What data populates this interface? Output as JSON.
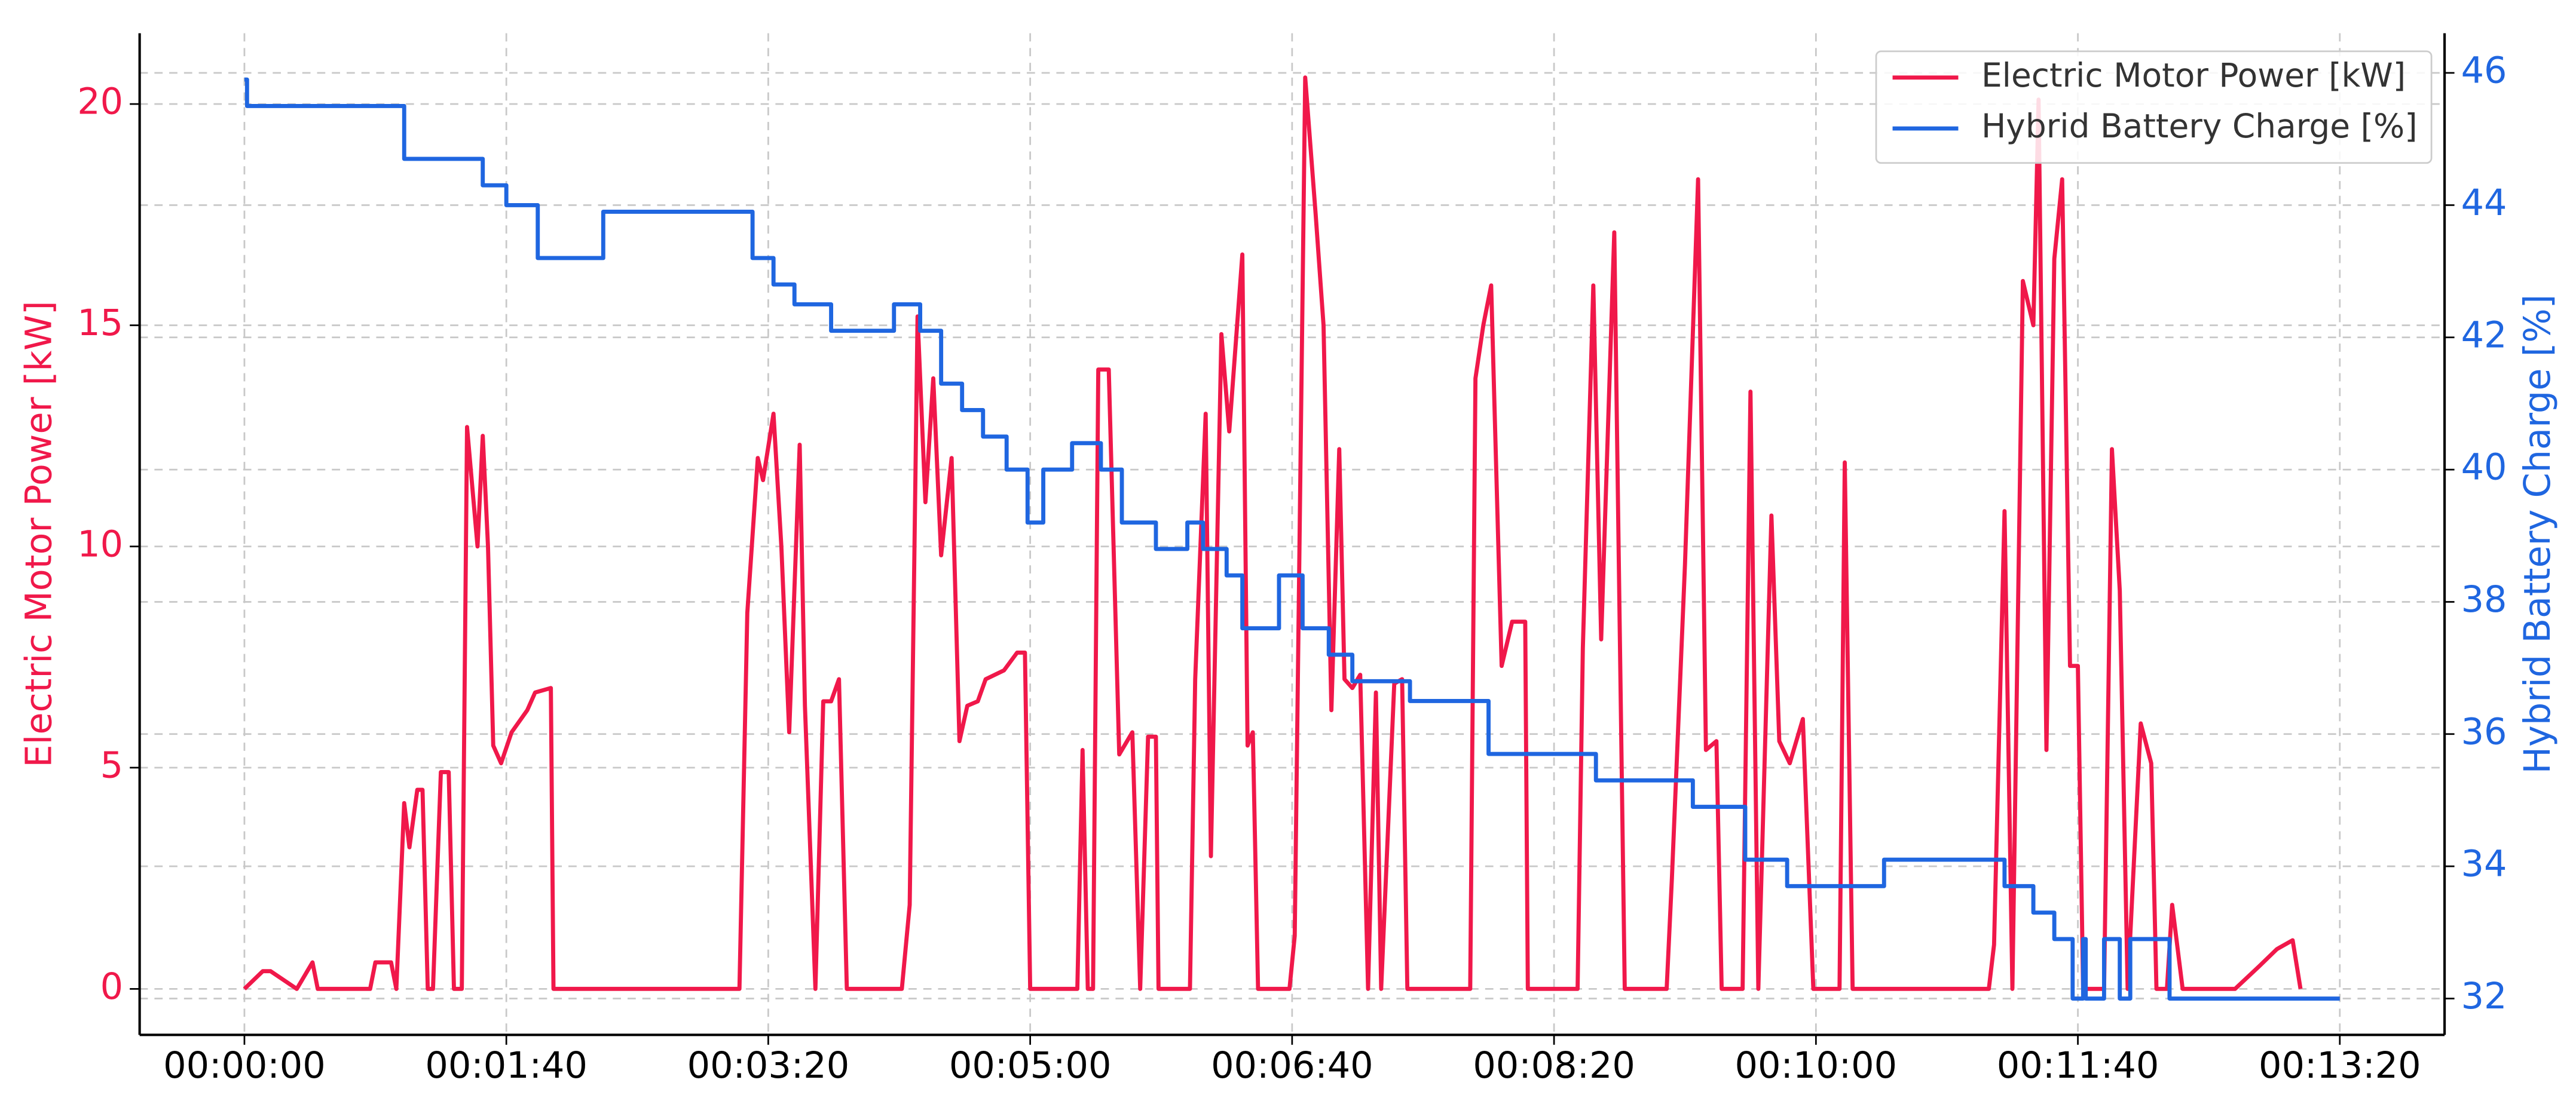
{
  "chart_data": {
    "type": "line",
    "y_label": "Electric Motor Power [kW]",
    "y2_label": "Hybrid Battery Charge [%]",
    "xlim": [
      -40,
      840
    ],
    "xticks": [
      {
        "value": 0,
        "label": "00:00:00"
      },
      {
        "value": 100,
        "label": "00:01:40"
      },
      {
        "value": 200,
        "label": "00:03:20"
      },
      {
        "value": 300,
        "label": "00:05:00"
      },
      {
        "value": 400,
        "label": "00:06:40"
      },
      {
        "value": 500,
        "label": "00:08:20"
      },
      {
        "value": 600,
        "label": "00:10:00"
      },
      {
        "value": 700,
        "label": "00:11:40"
      },
      {
        "value": 800,
        "label": "00:13:20"
      }
    ],
    "ylim": [
      -1.04,
      21.6
    ],
    "yticks": [
      0,
      5,
      10,
      15,
      20
    ],
    "y2lim": [
      31.45,
      46.6
    ],
    "y2ticks": [
      32,
      34,
      36,
      38,
      40,
      42,
      44,
      46
    ],
    "grid": true,
    "legend": "upper right",
    "series": [
      {
        "name": "Electric Motor Power [kW]",
        "color": "#f0184a",
        "axis": "y",
        "x": [
          0,
          7,
          10,
          20,
          26,
          28,
          48,
          50,
          56,
          58,
          61,
          63,
          66,
          68,
          70,
          72,
          75,
          78,
          80,
          83,
          85,
          89,
          91,
          93,
          95,
          98,
          102,
          108,
          111,
          117,
          118,
          189,
          192,
          196,
          198,
          202,
          205,
          208,
          212,
          214,
          218,
          221,
          224,
          227,
          230,
          251,
          254,
          257,
          260,
          263,
          266,
          270,
          273,
          276,
          280,
          283,
          290,
          295,
          298,
          300,
          318,
          320,
          322,
          324,
          326,
          330,
          334,
          339,
          342,
          345,
          348,
          349,
          361,
          363,
          367,
          369,
          373,
          376,
          381,
          383,
          385,
          387,
          399,
          401,
          405,
          409,
          412,
          415,
          418,
          420,
          423,
          426,
          429,
          432,
          434,
          439,
          442,
          444,
          468,
          470,
          473,
          476,
          480,
          484,
          489,
          490,
          509,
          511,
          515,
          518,
          523,
          525,
          527,
          543,
          545,
          550,
          555,
          558,
          562,
          564,
          572,
          575,
          578,
          583,
          586,
          590,
          595,
          599,
          609,
          611,
          614,
          666,
          668,
          672,
          675,
          679,
          683,
          685,
          688,
          691,
          694,
          697,
          700,
          702,
          710,
          713,
          716,
          719,
          724,
          728,
          730,
          734,
          736,
          740,
          760,
          769,
          776,
          782,
          785
        ],
        "values": [
          0,
          0.4,
          0.4,
          0,
          0.6,
          0,
          0,
          0.6,
          0.6,
          0,
          4.2,
          3.2,
          4.5,
          4.5,
          0,
          0,
          4.9,
          4.9,
          0,
          0,
          12.7,
          10,
          12.5,
          10,
          5.5,
          5.1,
          5.8,
          6.3,
          6.7,
          6.8,
          0,
          0,
          8.5,
          12,
          11.5,
          13,
          10,
          5.8,
          12.3,
          6.4,
          0,
          6.5,
          6.5,
          7,
          0,
          0,
          1.9,
          15.2,
          11,
          13.8,
          9.8,
          12,
          5.6,
          6.4,
          6.5,
          7,
          7.2,
          7.6,
          7.6,
          0,
          0,
          5.4,
          0,
          0,
          14,
          14,
          5.3,
          5.8,
          0,
          5.7,
          5.7,
          0,
          0,
          7,
          13,
          3,
          14.8,
          12.6,
          16.6,
          5.5,
          5.8,
          0,
          0,
          1.2,
          20.6,
          17.5,
          15,
          6.3,
          12.2,
          7,
          6.8,
          7.1,
          0,
          6.7,
          0,
          6.9,
          7,
          0,
          0,
          13.8,
          15,
          15.9,
          7.3,
          8.3,
          8.3,
          0,
          0,
          7.7,
          15.9,
          7.9,
          17.1,
          8.5,
          0,
          0,
          2.5,
          9.6,
          18.3,
          5.4,
          5.6,
          0,
          0,
          13.5,
          0,
          10.7,
          5.6,
          5.1,
          6.1,
          0,
          0,
          11.9,
          0,
          0,
          1,
          10.8,
          0,
          16,
          15,
          20.1,
          5.4,
          16.5,
          18.3,
          7.3,
          7.3,
          0,
          0,
          12.2,
          9,
          0,
          6,
          5.1,
          0,
          0,
          1.9,
          0,
          0,
          0.5,
          0.9,
          1.1,
          0
        ]
      },
      {
        "name": "Hybrid Battery Charge [%]",
        "color": "#1f66e0",
        "axis": "y2",
        "step": "post",
        "x": [
          0,
          1,
          61,
          91,
          100,
          112,
          137,
          194,
          202,
          210,
          224,
          248,
          258,
          266,
          274,
          282,
          291,
          299,
          305,
          316,
          327,
          335,
          348,
          360,
          366,
          375,
          381,
          395,
          404,
          414,
          423,
          445,
          475,
          516,
          553,
          573,
          589,
          626,
          672,
          683,
          691,
          698,
          702,
          703,
          710,
          716,
          720,
          735,
          800
        ],
        "values": [
          45.9,
          45.5,
          44.7,
          44.3,
          44,
          43.2,
          43.9,
          43.2,
          42.8,
          42.5,
          42.1,
          42.5,
          42.1,
          41.3,
          40.9,
          40.5,
          40,
          39.2,
          40,
          40.4,
          40,
          39.2,
          38.8,
          39.2,
          38.8,
          38.4,
          37.6,
          38.4,
          37.6,
          37.2,
          36.8,
          36.5,
          35.7,
          35.3,
          34.9,
          34.1,
          33.7,
          34.1,
          33.7,
          33.3,
          32.9,
          32,
          32.9,
          32,
          32.9,
          32,
          32.9,
          32,
          32
        ]
      }
    ]
  }
}
